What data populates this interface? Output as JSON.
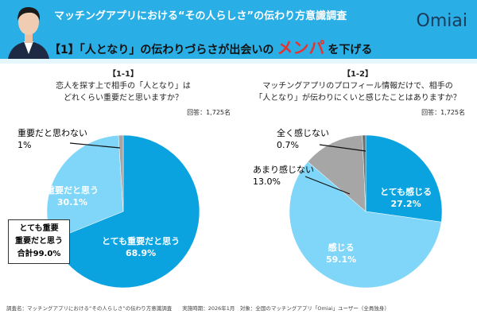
{
  "header": {
    "subtitle": "マッチングアプリにおける“その人らしさ”の伝わり方意識調査",
    "title_pre": "【1】「人となり」の伝わりづらさが出会いの",
    "title_emph": "メンパ",
    "title_post": "を下げる",
    "logo": "Omiai"
  },
  "chart_data": [
    {
      "type": "pie",
      "tag": "【1-1】",
      "title": "恋人を探す上で相手の「人となり」はどれくらい重要だと思いますか？",
      "title_l1": "恋人を探す上で相手の「人となり」は",
      "title_l2": "どれくらい重要だと思いますか？",
      "n": "回答：1,725名",
      "slices": [
        {
          "label": "とても重要だと思う",
          "value": 68.9,
          "display": "68.9%",
          "color": "#0aa3e0"
        },
        {
          "label": "重要だと思う",
          "value": 30.1,
          "display": "30.1%",
          "color": "#7fd6f8"
        },
        {
          "label": "重要だと思わない",
          "value": 1,
          "display": "1%",
          "color": "#a6a6a6"
        }
      ],
      "callout": {
        "l1": "とても重要",
        "l2": "重要だと思う",
        "l3": "合計99.0%"
      }
    },
    {
      "type": "pie",
      "tag": "【1-2】",
      "title_l1": "マッチングアプリのプロフィール情報だけで、相手の",
      "title_l2": "「人となり」が伝わりにくいと感じたことはありますか？",
      "n": "回答：1,725名",
      "slices": [
        {
          "label": "とても感じる",
          "value": 27.2,
          "display": "27.2%",
          "color": "#0aa3e0"
        },
        {
          "label": "感じる",
          "value": 59.1,
          "display": "59.1%",
          "color": "#7fd6f8"
        },
        {
          "label": "あまり感じない",
          "value": 13.0,
          "display": "13.0%",
          "color": "#a6a6a6"
        },
        {
          "label": "全く感じない",
          "value": 0.7,
          "display": "0.7%",
          "color": "#6e6e6e"
        }
      ]
    }
  ],
  "footer": "調査名：マッチングアプリにおける“その人らしさ”の伝わり方意識調査　　実施時期：2026年1月　対象：全国のマッチングアプリ「Omiai」ユーザー（全員独身）"
}
